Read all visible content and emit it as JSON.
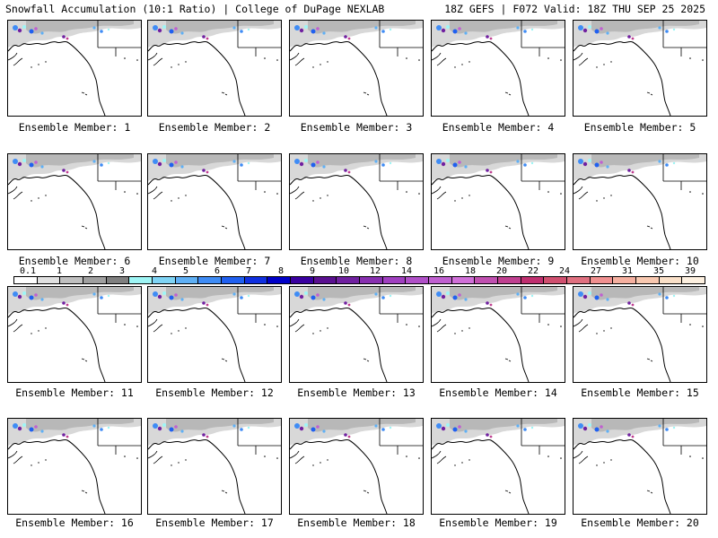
{
  "header": {
    "left": "Snowfall Accumulation (10:1 Ratio) | College of DuPage NEXLAB",
    "right": "18Z GEFS | F072 Valid: 18Z THU SEP 25 2025"
  },
  "members": [
    "Ensemble Member: 1",
    "Ensemble Member: 2",
    "Ensemble Member: 3",
    "Ensemble Member: 4",
    "Ensemble Member: 5",
    "Ensemble Member: 6",
    "Ensemble Member: 7",
    "Ensemble Member: 8",
    "Ensemble Member: 9",
    "Ensemble Member: 10",
    "Ensemble Member: 11",
    "Ensemble Member: 12",
    "Ensemble Member: 13",
    "Ensemble Member: 14",
    "Ensemble Member: 15",
    "Ensemble Member: 16",
    "Ensemble Member: 17",
    "Ensemble Member: 18",
    "Ensemble Member: 19",
    "Ensemble Member: 20"
  ],
  "colorbar": {
    "labels": [
      "0.1",
      "1",
      "2",
      "3",
      "4",
      "5",
      "6",
      "7",
      "8",
      "9",
      "10",
      "12",
      "14",
      "16",
      "18",
      "20",
      "22",
      "24",
      "27",
      "31",
      "35",
      "39"
    ],
    "colors": [
      "#ffffff",
      "#e0e0e0",
      "#c0c0c0",
      "#a0a0a0",
      "#808080",
      "#9ef5f5",
      "#7fd4f5",
      "#5fb0f5",
      "#3f8cf5",
      "#2060f0",
      "#1030e0",
      "#0000c8",
      "#3a00a0",
      "#5a1090",
      "#7020a0",
      "#8830b0",
      "#a040c0",
      "#b050c8",
      "#c060d0",
      "#d070d8",
      "#c050b0",
      "#c04090",
      "#c03070",
      "#d05070",
      "#e07080",
      "#f09090",
      "#f5b0a0",
      "#f8c8b0",
      "#fae0c8",
      "#fdf0e0"
    ]
  }
}
